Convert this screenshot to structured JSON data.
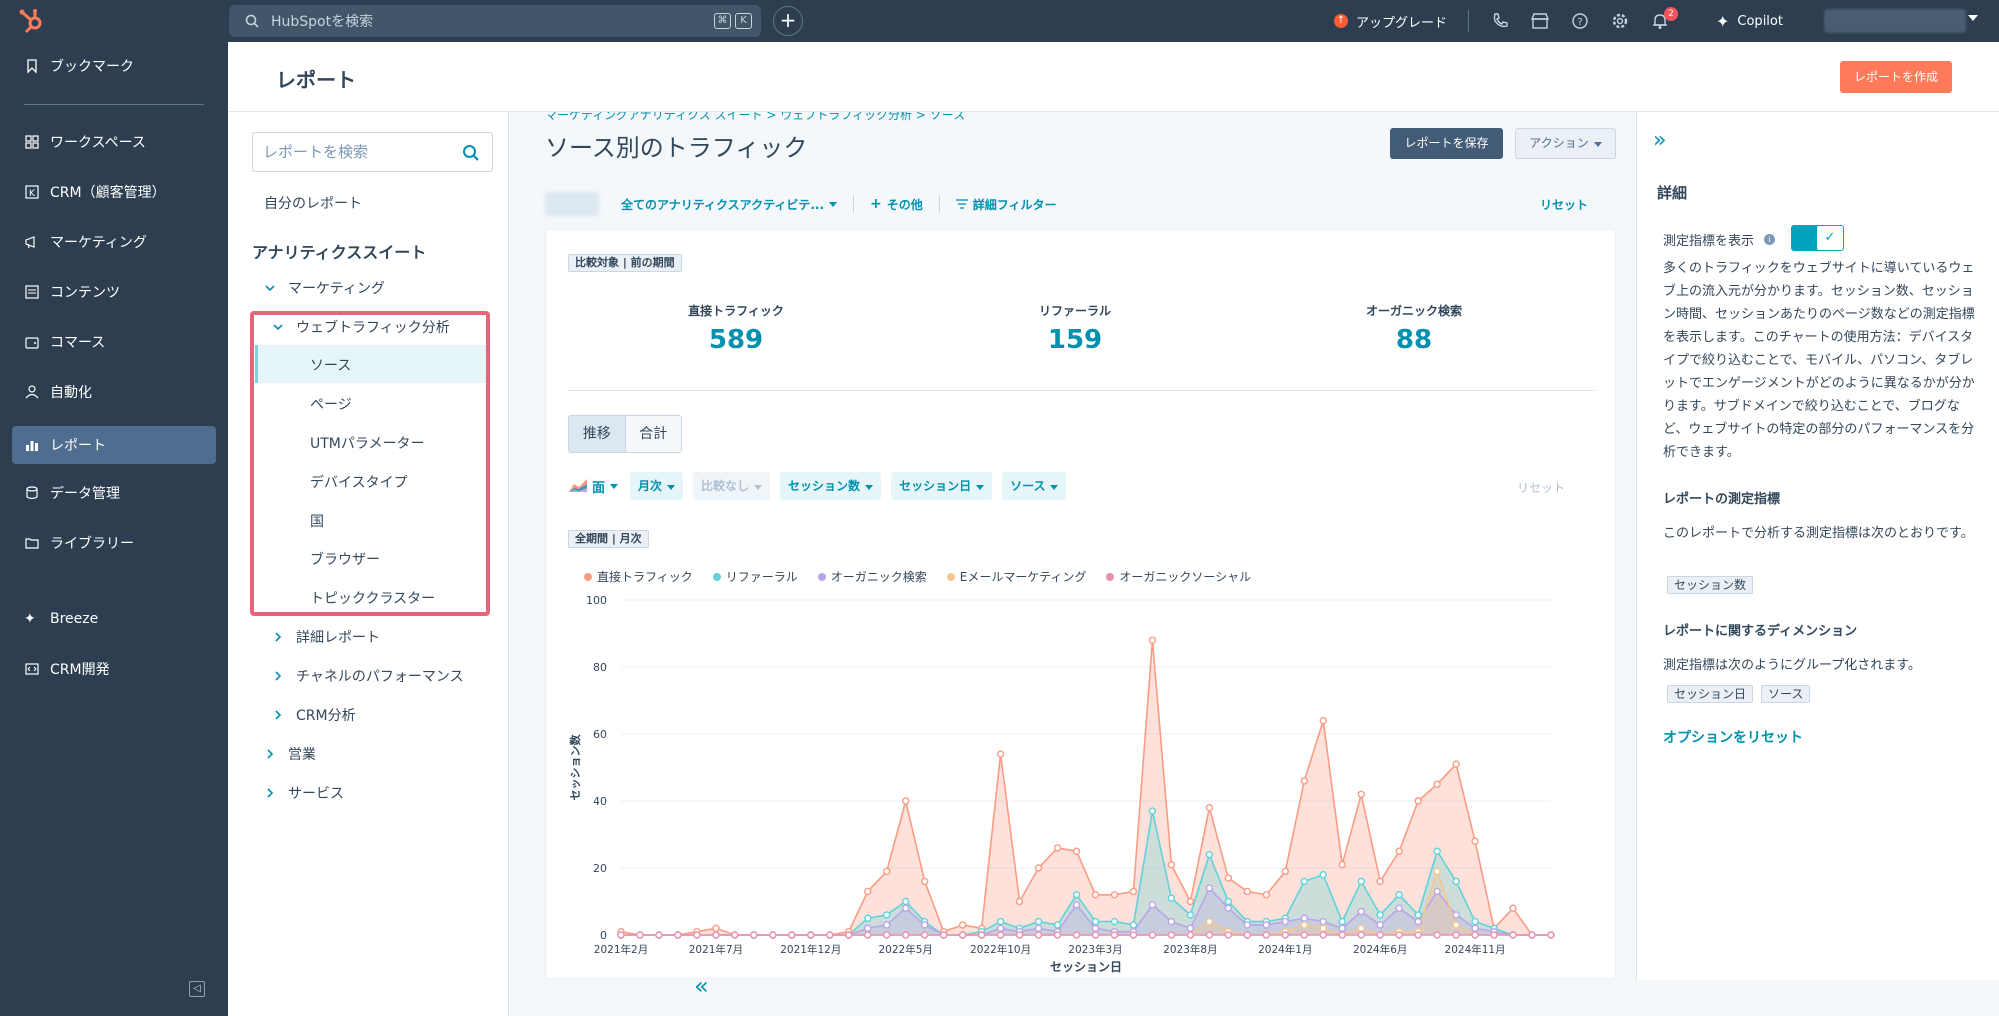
{
  "topbar": {
    "search_placeholder": "HubSpotを検索",
    "kbd_cmd": "⌘",
    "kbd_k": "K",
    "upgrade_label": "アップグレード",
    "notification_count": "2",
    "copilot_label": "Copilot"
  },
  "nav": {
    "bookmarks": "ブックマーク",
    "items": [
      "ワークスペース",
      "CRM（顧客管理）",
      "マーケティング",
      "コンテンツ",
      "コマース",
      "自動化",
      "レポート",
      "データ管理",
      "ライブラリー"
    ],
    "breeze": "Breeze",
    "crm_dev": "CRM開発"
  },
  "header": {
    "title": "レポート",
    "create_button": "レポートを作成"
  },
  "report_sidebar": {
    "search_placeholder": "レポートを検索",
    "my_reports": "自分のレポート",
    "section_title": "アナリティクススイート",
    "marketing": "マーケティング",
    "web_traffic": "ウェブトラフィック分析",
    "sub_items": [
      "ソース",
      "ページ",
      "UTMパラメーター",
      "デバイスタイプ",
      "国",
      "ブラウザー",
      "トピッククラスター"
    ],
    "groups": [
      "詳細レポート",
      "チャネルのパフォーマンス",
      "CRM分析"
    ],
    "sales": "営業",
    "service": "サービス"
  },
  "main": {
    "breadcrumb": "マーケティングアナリティクス スイート  >  ウェブトラフィック分析  >  ソース",
    "title": "ソース別のトラフィック",
    "save_button": "レポートを保存",
    "action_button": "アクション",
    "filter_activity": "全てのアナリティクスアクティビテ...",
    "filter_more": "その他",
    "filter_advanced": "詳細フィルター",
    "filter_reset": "リセット"
  },
  "summary": {
    "compare_tag": "比較対象 | 前の期間",
    "kpis": [
      {
        "label": "直接トラフィック",
        "value": "589"
      },
      {
        "label": "リファーラル",
        "value": "159"
      },
      {
        "label": "オーガニック検索",
        "value": "88"
      }
    ]
  },
  "chart_controls": {
    "toggle_trend": "推移",
    "toggle_total": "合計",
    "chart_type": "面",
    "chips": [
      "月次",
      "比較なし",
      "セッション数",
      "セッション日",
      "ソース"
    ],
    "reset": "リセット",
    "period_tag": "全期間 | 月次"
  },
  "colors": {
    "direct": "#f99c85",
    "referral": "#5fd3d9",
    "organic": "#b9a5e8",
    "email": "#f5c78e",
    "social": "#ea90b1"
  },
  "chart_data": {
    "type": "area",
    "xlabel": "セッション日",
    "ylabel": "セッション数",
    "ylim": [
      0,
      100
    ],
    "yticks": [
      0,
      20,
      40,
      60,
      80,
      100
    ],
    "xticks": [
      "2021年2月",
      "2021年7月",
      "2021年12月",
      "2022年5月",
      "2022年10月",
      "2023年3月",
      "2023年8月",
      "2024年1月",
      "2024年6月",
      "2024年11月"
    ],
    "x": [
      "2021年2月",
      "2021年3月",
      "2021年4月",
      "2021年5月",
      "2021年6月",
      "2021年7月",
      "2021年8月",
      "2021年9月",
      "2021年10月",
      "2021年11月",
      "2021年12月",
      "2022年1月",
      "2022年2月",
      "2022年3月",
      "2022年4月",
      "2022年5月",
      "2022年6月",
      "2022年7月",
      "2022年8月",
      "2022年9月",
      "2022年10月",
      "2022年11月",
      "2022年12月",
      "2023年1月",
      "2023年2月",
      "2023年3月",
      "2023年4月",
      "2023年5月",
      "2023年6月",
      "2023年7月",
      "2023年8月",
      "2023年9月",
      "2023年10月",
      "2023年11月",
      "2023年12月",
      "2024年1月",
      "2024年2月",
      "2024年3月",
      "2024年4月",
      "2024年5月",
      "2024年6月",
      "2024年7月",
      "2024年8月",
      "2024年9月",
      "2024年10月",
      "2024年11月",
      "2024年12月",
      "2025年1月",
      "2025年2月",
      "2025年3月"
    ],
    "series": [
      {
        "name": "直接トラフィック",
        "key": "direct",
        "values": [
          1,
          0,
          0,
          0,
          1,
          2,
          0,
          0,
          0,
          0,
          0,
          0,
          1,
          13,
          19,
          40,
          16,
          1,
          3,
          2,
          54,
          10,
          20,
          26,
          25,
          12,
          12,
          13,
          88,
          21,
          10,
          38,
          17,
          13,
          12,
          19,
          46,
          64,
          21,
          42,
          16,
          25,
          40,
          45,
          51,
          28,
          2,
          8,
          0,
          0
        ]
      },
      {
        "name": "リファーラル",
        "key": "referral",
        "values": [
          0,
          0,
          0,
          0,
          0,
          0,
          0,
          0,
          0,
          0,
          0,
          0,
          0,
          5,
          6,
          10,
          4,
          0,
          0,
          1,
          4,
          2,
          4,
          3,
          12,
          4,
          4,
          3,
          37,
          11,
          6,
          24,
          10,
          4,
          4,
          5,
          16,
          18,
          4,
          16,
          6,
          12,
          6,
          25,
          16,
          4,
          2,
          0,
          0,
          0
        ]
      },
      {
        "name": "オーガニック検索",
        "key": "organic",
        "values": [
          0,
          0,
          0,
          0,
          0,
          0,
          0,
          0,
          0,
          0,
          0,
          0,
          0,
          2,
          3,
          8,
          3,
          0,
          0,
          0,
          2,
          1,
          2,
          1,
          9,
          2,
          1,
          1,
          9,
          4,
          2,
          14,
          8,
          3,
          3,
          4,
          5,
          4,
          2,
          7,
          3,
          8,
          4,
          13,
          6,
          2,
          1,
          0,
          0,
          0
        ]
      },
      {
        "name": "Eメールマーケティング",
        "key": "email",
        "values": [
          0,
          0,
          0,
          0,
          0,
          0,
          0,
          0,
          0,
          0,
          0,
          0,
          0,
          0,
          0,
          0,
          0,
          0,
          0,
          0,
          0,
          0,
          0,
          0,
          0,
          0,
          0,
          0,
          0,
          0,
          0,
          4,
          1,
          0,
          0,
          1,
          3,
          2,
          0,
          2,
          0,
          1,
          1,
          19,
          3,
          0,
          0,
          0,
          0,
          0
        ]
      },
      {
        "name": "オーガニックソーシャル",
        "key": "social",
        "values": [
          0,
          0,
          0,
          0,
          0,
          0,
          0,
          0,
          0,
          0,
          0,
          0,
          0,
          0,
          0,
          0,
          0,
          0,
          0,
          0,
          0,
          0,
          0,
          0,
          0,
          0,
          0,
          0,
          0,
          0,
          0,
          0,
          0,
          0,
          0,
          0,
          0,
          0,
          0,
          0,
          0,
          0,
          0,
          0,
          0,
          0,
          0,
          0,
          0,
          0
        ]
      }
    ]
  },
  "details": {
    "title": "詳細",
    "show_metrics": "測定指標を表示",
    "description": "多くのトラフィックをウェブサイトに導いているウェブ上の流入元が分かります。セッション数、セッション時間、セッションあたりのページ数などの測定指標を表示します。このチャートの使用方法：デバイスタイプで絞り込むことで、モバイル、パソコン、タブレットでエンゲージメントがどのように異なるかが分かります。サブドメインで絞り込むことで、ブログなど、ウェブサイトの特定の部分のパフォーマンスを分析できます。",
    "metrics_title": "レポートの測定指標",
    "metrics_text": "このレポートで分析する測定指標は次のとおりです。",
    "metrics_tags": [
      "セッション数"
    ],
    "dimensions_title": "レポートに関するディメンション",
    "dimensions_text": "測定指標は次のようにグループ化されます。",
    "dimensions_tags": [
      "セッション日",
      "ソース"
    ],
    "reset_link": "オプションをリセット"
  }
}
